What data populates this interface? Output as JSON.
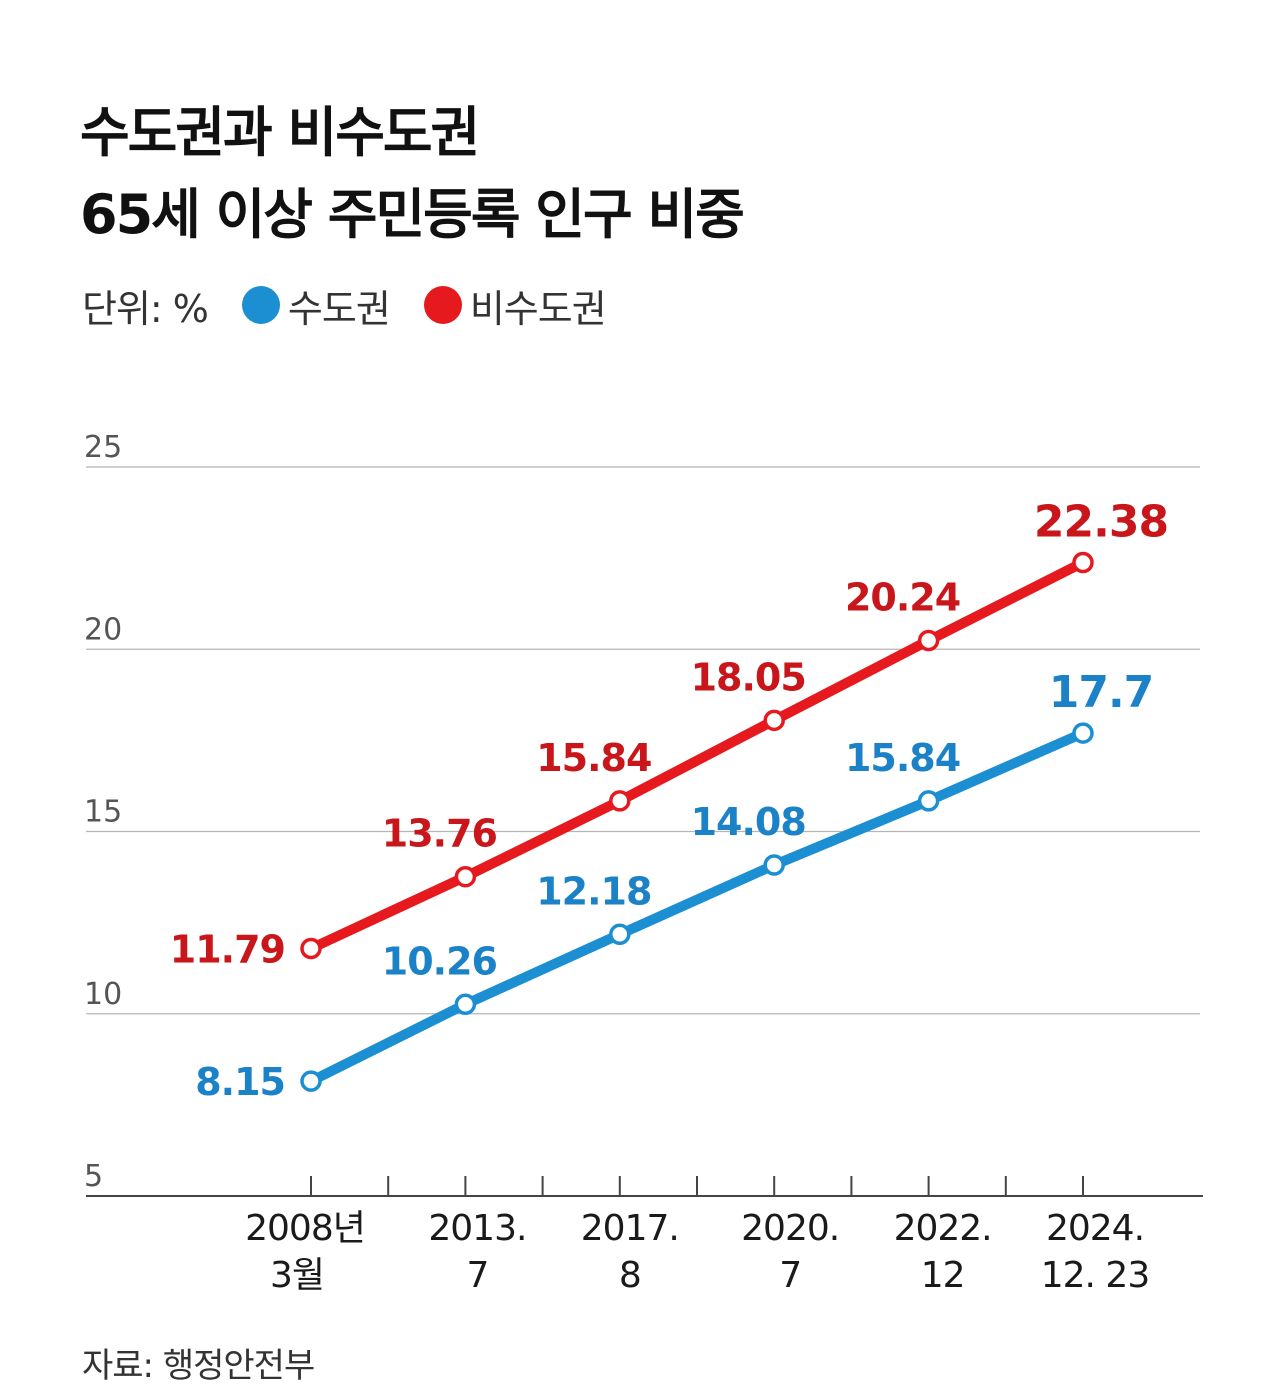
{
  "title": {
    "line1": "수도권과 비수도권",
    "line2": "65세 이상 주민등록 인구 비중"
  },
  "legend": {
    "unit": "단위: %",
    "items": [
      {
        "label": "수도권",
        "color": "#1b8fd2"
      },
      {
        "label": "비수도권",
        "color": "#e5191e"
      }
    ]
  },
  "source": "자료: 행정안전부",
  "chart_data": {
    "type": "line",
    "title": "수도권과 비수도권 65세 이상 주민등록 인구 비중",
    "ylabel": "%",
    "xlabel": "",
    "ylim": [
      5,
      25
    ],
    "yticks": [
      5,
      10,
      15,
      20,
      25
    ],
    "grid": true,
    "categories": [
      [
        "2008년",
        "3월"
      ],
      [
        "2013.",
        "7"
      ],
      [
        "2017.",
        "8"
      ],
      [
        "2020.",
        "7"
      ],
      [
        "2022.",
        "12"
      ],
      [
        "2024.",
        "12. 23"
      ]
    ],
    "series": [
      {
        "name": "비수도권",
        "color": "#e5191e",
        "label_color": "#c8161b",
        "values": [
          11.79,
          13.76,
          15.84,
          18.05,
          20.24,
          22.38
        ],
        "labels": [
          "11.79",
          "13.76",
          "15.84",
          "18.05",
          "20.24",
          "22.38"
        ]
      },
      {
        "name": "수도권",
        "color": "#1b8fd2",
        "label_color": "#1b82c8",
        "values": [
          8.15,
          10.26,
          12.18,
          14.08,
          15.84,
          17.7
        ],
        "labels": [
          "8.15",
          "10.26",
          "12.18",
          "14.08",
          "15.84",
          "17.7"
        ]
      }
    ]
  }
}
